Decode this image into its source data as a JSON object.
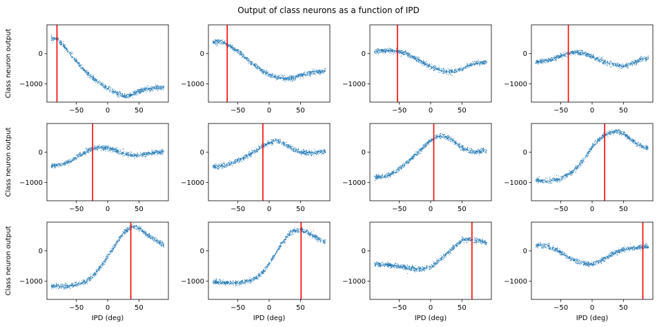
{
  "figure": {
    "title": "Output of class neurons as a function of IPD"
  },
  "chart_data": {
    "type": "scatter",
    "layout": "3x4 grid of subplots",
    "title": "Output of class neurons as a function of IPD",
    "xlabel": "IPD (deg)",
    "ylabel": "Class neuron output",
    "xlim": [
      -97,
      97
    ],
    "ylim": [
      -1600,
      950
    ],
    "xticks": [
      -50,
      0,
      50
    ],
    "yticks": [
      -1000,
      0
    ],
    "ytick_labels": [
      "−1000",
      "0"
    ],
    "xtick_labels": [
      "−50",
      "0",
      "50"
    ],
    "xlabel_shown_on": "bottom row",
    "ylabel_shown_on": "left column",
    "grid": false,
    "series_color": "#1f77b4",
    "marker_color_line": "#ff0000",
    "x_key": [
      -90,
      -80,
      -70,
      -60,
      -50,
      -40,
      -30,
      -20,
      -10,
      0,
      10,
      20,
      30,
      40,
      50,
      60,
      70,
      80,
      90
    ],
    "panels": [
      {
        "marker_ipd": -81,
        "y": [
          500,
          470,
          250,
          0,
          -250,
          -500,
          -700,
          -870,
          -1020,
          -1140,
          -1260,
          -1350,
          -1410,
          -1350,
          -1240,
          -1180,
          -1150,
          -1120,
          -1110
        ]
      },
      {
        "marker_ipd": -67,
        "y": [
          380,
          400,
          340,
          220,
          80,
          -100,
          -280,
          -440,
          -580,
          -690,
          -770,
          -810,
          -820,
          -790,
          -730,
          -670,
          -620,
          -600,
          -580
        ]
      },
      {
        "marker_ipd": -53,
        "y": [
          80,
          95,
          100,
          90,
          60,
          0,
          -90,
          -200,
          -320,
          -430,
          -520,
          -580,
          -600,
          -580,
          -500,
          -400,
          -330,
          -300,
          -290
        ]
      },
      {
        "marker_ipd": -38,
        "y": [
          -280,
          -260,
          -230,
          -160,
          -80,
          -10,
          40,
          30,
          -20,
          -100,
          -200,
          -280,
          -330,
          -380,
          -420,
          -360,
          -260,
          -180,
          -160
        ]
      },
      {
        "marker_ipd": -24,
        "y": [
          -450,
          -420,
          -380,
          -290,
          -160,
          -50,
          60,
          130,
          150,
          130,
          80,
          0,
          -60,
          -110,
          -100,
          -60,
          -20,
          0,
          20
        ]
      },
      {
        "marker_ipd": -10,
        "y": [
          -480,
          -470,
          -430,
          -360,
          -270,
          -170,
          -60,
          70,
          200,
          320,
          380,
          320,
          210,
          80,
          0,
          -20,
          -20,
          10,
          30
        ]
      },
      {
        "marker_ipd": 5,
        "y": [
          -830,
          -810,
          -770,
          -680,
          -550,
          -380,
          -200,
          -20,
          200,
          390,
          520,
          550,
          460,
          300,
          160,
          60,
          0,
          30,
          50
        ]
      },
      {
        "marker_ipd": 20,
        "y": [
          -920,
          -940,
          -960,
          -930,
          -860,
          -760,
          -620,
          -420,
          -150,
          170,
          400,
          560,
          660,
          700,
          620,
          450,
          300,
          190,
          130
        ]
      },
      {
        "marker_ipd": 37,
        "y": [
          -1170,
          -1180,
          -1180,
          -1150,
          -1100,
          -1050,
          -940,
          -760,
          -500,
          -200,
          120,
          450,
          700,
          800,
          760,
          600,
          450,
          320,
          200
        ]
      },
      {
        "marker_ipd": 51,
        "y": [
          -1020,
          -1040,
          -1050,
          -1060,
          -1050,
          -1030,
          -980,
          -880,
          -700,
          -420,
          -100,
          250,
          520,
          680,
          690,
          620,
          500,
          370,
          290
        ]
      },
      {
        "marker_ipd": 66,
        "y": [
          -440,
          -450,
          -460,
          -480,
          -510,
          -540,
          -580,
          -600,
          -590,
          -520,
          -380,
          -200,
          -20,
          180,
          350,
          380,
          360,
          320,
          270
        ]
      },
      {
        "marker_ipd": 81,
        "y": [
          190,
          180,
          150,
          60,
          -60,
          -180,
          -290,
          -370,
          -420,
          -430,
          -370,
          -260,
          -130,
          -20,
          40,
          80,
          110,
          130,
          140
        ]
      }
    ]
  }
}
